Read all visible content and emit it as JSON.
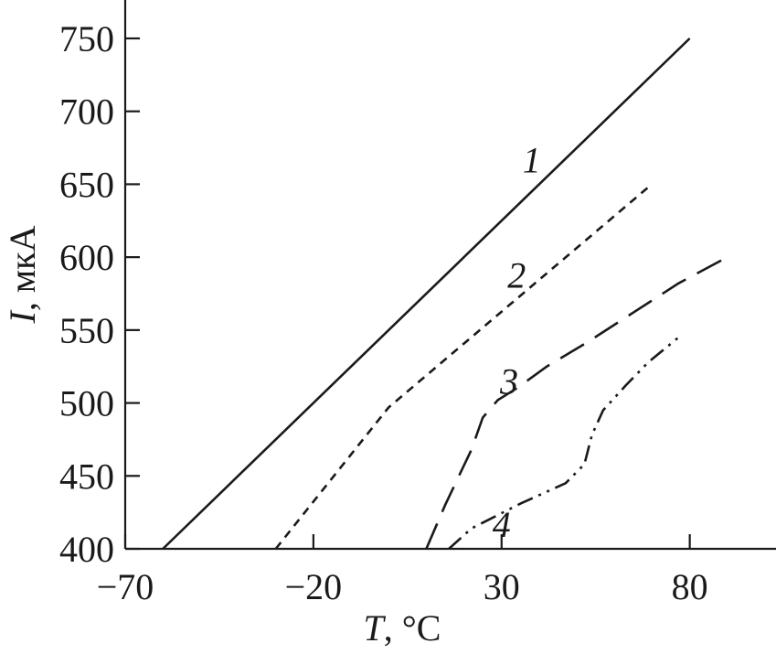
{
  "chart_data": {
    "type": "line",
    "title": "",
    "xlabel": {
      "symbol": "T",
      "unit": ", °C"
    },
    "ylabel": {
      "symbol": "I",
      "unit": ", мкА"
    },
    "xlim": [
      -70,
      100
    ],
    "ylim": [
      400,
      760
    ],
    "xticks": [
      -70,
      -20,
      30,
      80
    ],
    "xtick_labels": [
      "−70",
      "−20",
      "30",
      "80"
    ],
    "yticks": [
      400,
      450,
      500,
      550,
      600,
      650,
      700,
      750
    ],
    "ytick_labels": [
      "400",
      "450",
      "500",
      "550",
      "600",
      "650",
      "700",
      "750"
    ],
    "grid": false,
    "series": [
      {
        "label": "1",
        "style": "solid",
        "label_at": [
          38,
          667
        ],
        "points": [
          [
            -60,
            400
          ],
          [
            80,
            750
          ]
        ]
      },
      {
        "label": "2",
        "style": "short-dash",
        "label_at": [
          34,
          588
        ],
        "points": [
          [
            -30,
            400
          ],
          [
            0,
            497
          ],
          [
            69,
            648
          ]
        ]
      },
      {
        "label": "3",
        "style": "long-dash",
        "label_at": [
          32,
          515
        ],
        "points": [
          [
            10,
            400
          ],
          [
            15,
            430
          ],
          [
            22,
            468
          ],
          [
            25,
            490
          ],
          [
            29,
            502
          ],
          [
            34,
            510
          ],
          [
            42,
            525
          ],
          [
            53,
            542
          ],
          [
            65,
            562
          ],
          [
            77,
            582
          ],
          [
            90,
            600
          ]
        ]
      },
      {
        "label": "4",
        "style": "dash-dot-dot",
        "label_at": [
          30,
          417
        ],
        "points": [
          [
            16,
            400
          ],
          [
            22,
            414
          ],
          [
            35,
            431
          ],
          [
            47,
            445
          ],
          [
            52,
            458
          ],
          [
            54,
            478
          ],
          [
            57,
            495
          ],
          [
            63,
            512
          ],
          [
            69,
            528
          ],
          [
            78,
            547
          ]
        ]
      }
    ]
  }
}
